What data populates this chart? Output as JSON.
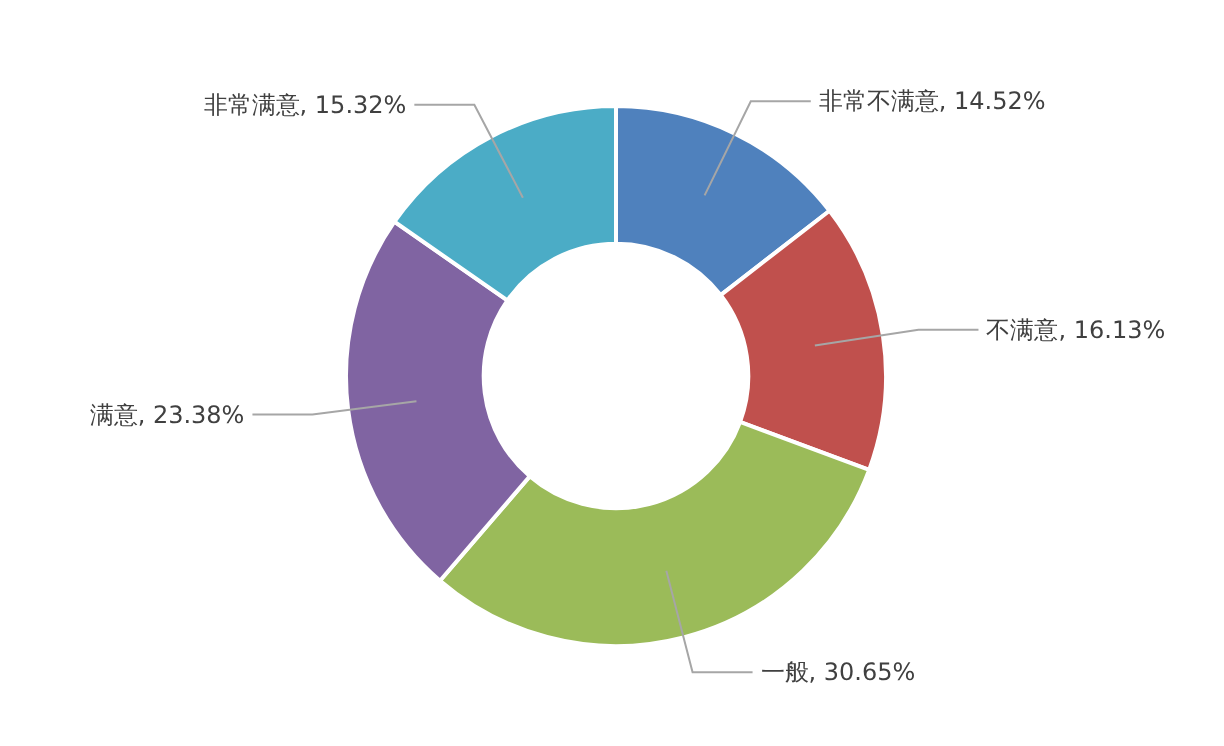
{
  "chart_data": {
    "type": "donut",
    "categories": [
      "非常不满意",
      "不满意",
      "一般",
      "满意",
      "非常满意"
    ],
    "values": [
      14.52,
      16.13,
      30.65,
      23.38,
      15.32
    ],
    "value_labels": [
      "14.52%",
      "16.13%",
      "30.65%",
      "23.38%",
      "15.32%"
    ],
    "colors": [
      "#4f81bd",
      "#c0504d",
      "#9bbb59",
      "#8064a2",
      "#4bacc6"
    ],
    "data_labels": true
  }
}
